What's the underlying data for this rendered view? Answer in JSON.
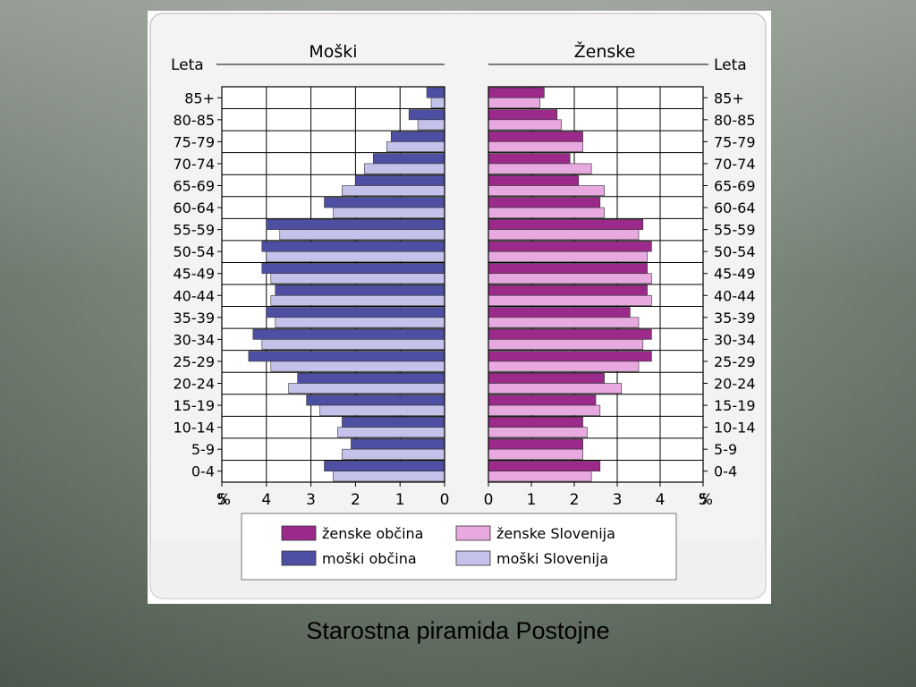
{
  "caption": "Starostna piramida Postojne",
  "colors": {
    "zenske_obcina": "#9b2a8a",
    "zenske_slovenija": "#e8a9e0",
    "moski_obcina": "#4d4fa3",
    "moski_slovenija": "#c4c1ea",
    "grid": "#000000"
  },
  "chart_data": {
    "type": "bar",
    "subtype": "population-pyramid",
    "left_title": "Moški",
    "right_title": "Ženske",
    "ylabel_left": "Leta",
    "ylabel_right": "Leta",
    "x_unit_label": "%",
    "xlim": [
      0,
      5
    ],
    "x_ticks_left": [
      "5",
      "4",
      "3",
      "2",
      "1",
      "0"
    ],
    "x_ticks_right": [
      "0",
      "1",
      "2",
      "3",
      "4",
      "5"
    ],
    "categories": [
      "85+",
      "80-85",
      "75-79",
      "70-74",
      "65-69",
      "60-64",
      "55-59",
      "50-54",
      "45-49",
      "40-44",
      "35-39",
      "30-34",
      "25-29",
      "20-24",
      "15-19",
      "10-14",
      "5-9",
      "0-4"
    ],
    "series": [
      {
        "name": "moški občina",
        "side": "left",
        "values": [
          0.4,
          0.8,
          1.2,
          1.6,
          2.0,
          2.7,
          4.0,
          4.1,
          4.1,
          3.8,
          4.0,
          4.3,
          4.4,
          3.3,
          3.1,
          2.3,
          2.1,
          2.7
        ]
      },
      {
        "name": "moški Slovenija",
        "side": "left",
        "values": [
          0.3,
          0.6,
          1.3,
          1.8,
          2.3,
          2.5,
          3.7,
          4.0,
          3.9,
          3.9,
          3.8,
          4.1,
          3.9,
          3.5,
          2.8,
          2.4,
          2.3,
          2.5
        ]
      },
      {
        "name": "ženske občina",
        "side": "right",
        "values": [
          1.3,
          1.6,
          2.2,
          1.9,
          2.1,
          2.6,
          3.6,
          3.8,
          3.7,
          3.7,
          3.3,
          3.8,
          3.8,
          2.7,
          2.5,
          2.2,
          2.2,
          2.6
        ]
      },
      {
        "name": "ženske Slovenija",
        "side": "right",
        "values": [
          1.2,
          1.7,
          2.2,
          2.4,
          2.7,
          2.7,
          3.5,
          3.7,
          3.8,
          3.8,
          3.5,
          3.6,
          3.5,
          3.1,
          2.6,
          2.3,
          2.2,
          2.4
        ]
      }
    ],
    "legend": {
      "placement": "bottom",
      "entries": [
        {
          "label": "ženske občina",
          "color_key": "zenske_obcina"
        },
        {
          "label": "ženske Slovenija",
          "color_key": "zenske_slovenija"
        },
        {
          "label": "moški občina",
          "color_key": "moski_obcina"
        },
        {
          "label": "moški Slovenija",
          "color_key": "moski_slovenija"
        }
      ]
    },
    "grid": true
  }
}
